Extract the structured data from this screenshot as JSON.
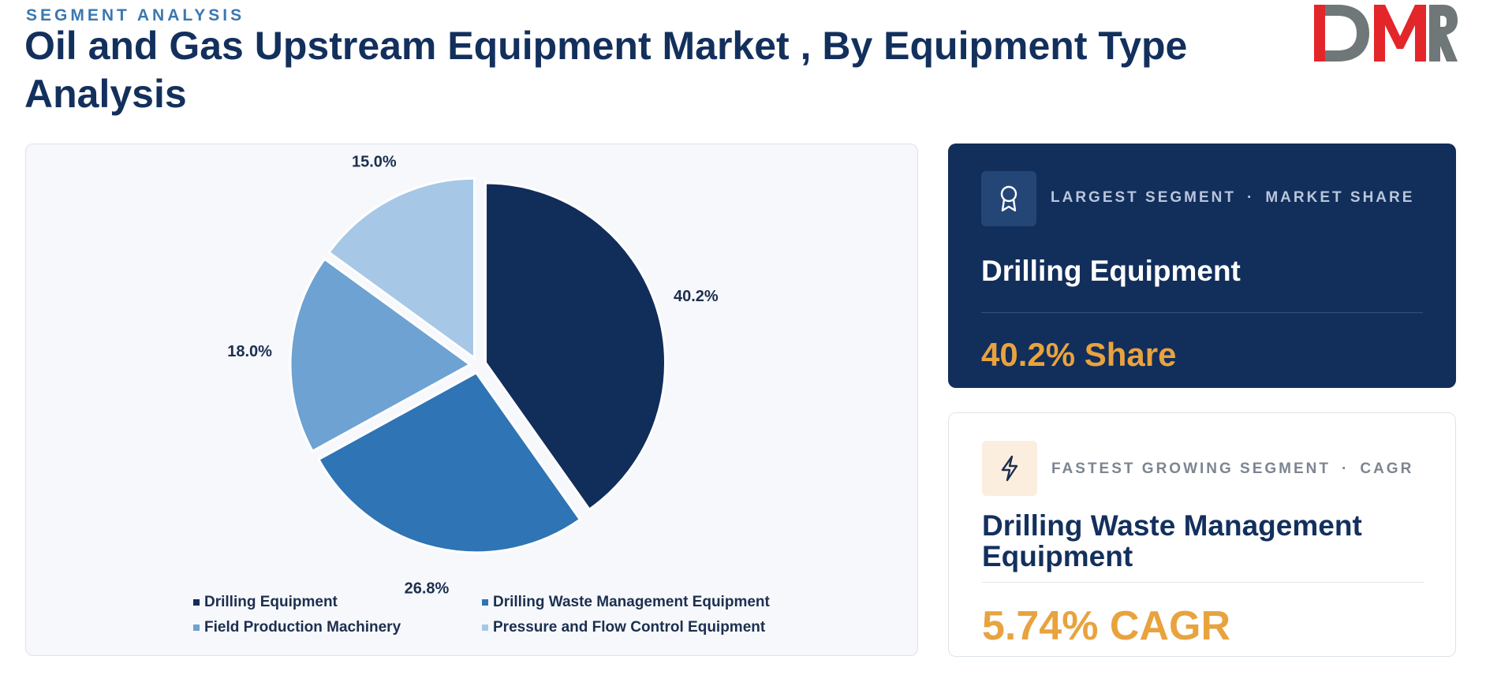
{
  "header": {
    "eyebrow": "SEGMENT ANALYSIS",
    "title": "Oil and Gas Upstream Equipment Market , By Equipment Type Analysis",
    "logo_text": "DMR"
  },
  "chart_data": {
    "type": "pie",
    "categories": [
      "Drilling Equipment",
      "Drilling Waste Management Equipment",
      "Field Production Machinery",
      "Pressure and Flow Control Equipment"
    ],
    "values": [
      40.2,
      26.8,
      18.0,
      15.0
    ],
    "labels": [
      "40.2%",
      "26.8%",
      "18.0%",
      "15.0%"
    ],
    "colors": [
      "#112d5a",
      "#2f74b5",
      "#6da2d2",
      "#a6c8e6"
    ],
    "legend_placement": "bottom",
    "exploded": true
  },
  "cards": {
    "largest": {
      "kicker_left": "LARGEST SEGMENT",
      "kicker_right": "MARKET SHARE",
      "separator": "·",
      "segment": "Drilling Equipment",
      "metric": "40.2% Share",
      "icon": "award-ribbon-icon"
    },
    "fastest": {
      "kicker_left": "FASTEST GROWING SEGMENT",
      "kicker_right": "CAGR",
      "separator": "·",
      "segment": "Drilling Waste Management Equipment",
      "metric": "5.74% CAGR",
      "icon": "lightning-bolt-icon"
    }
  },
  "colors": {
    "navy": "#122e5b",
    "accent": "#e8a33f",
    "eyebrow": "#3a78b0",
    "logo_grey": "#6f7778",
    "logo_red": "#e3262a"
  }
}
